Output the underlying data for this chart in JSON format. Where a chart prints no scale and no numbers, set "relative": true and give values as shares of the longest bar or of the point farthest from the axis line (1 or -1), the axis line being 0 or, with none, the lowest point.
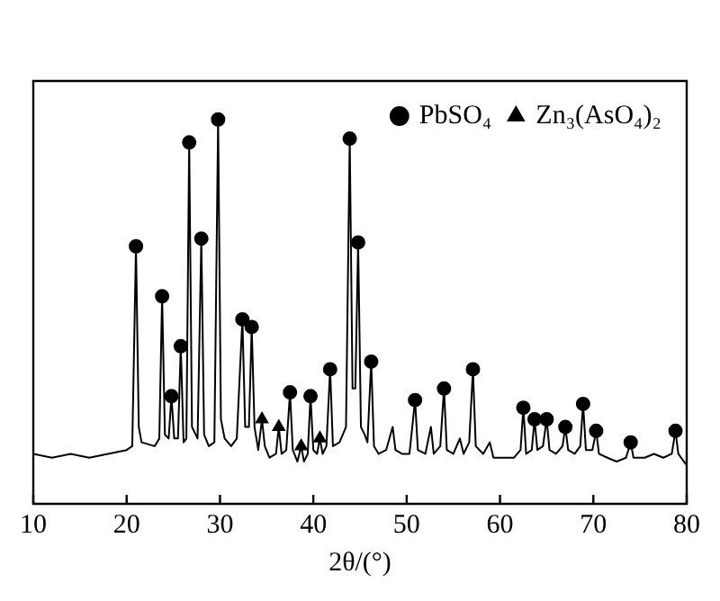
{
  "chart_data": {
    "type": "line",
    "relative": true,
    "xlabel": "2θ/(°)",
    "xlim": [
      10,
      80
    ],
    "xticks": [
      10,
      20,
      30,
      40,
      50,
      60,
      70,
      80
    ],
    "legend": "top right",
    "grid": false,
    "series": [
      {
        "color": "#000000",
        "marker": "none",
        "line_style": "solid",
        "x": [
          10,
          12,
          14,
          16,
          18,
          20,
          20.6,
          21.0,
          21.3,
          21.6,
          23.0,
          23.5,
          23.8,
          24.1,
          24.5,
          24.8,
          25.1,
          25.5,
          25.8,
          26.1,
          26.4,
          26.7,
          27.0,
          27.4,
          27.6,
          28.0,
          28.3,
          28.8,
          29.4,
          29.8,
          30.1,
          30.5,
          31.2,
          31.8,
          32.4,
          32.7,
          33.1,
          33.4,
          33.7,
          34.1,
          34.5,
          34.8,
          35.3,
          36.0,
          36.3,
          36.6,
          37.1,
          37.5,
          37.8,
          38.3,
          38.7,
          39.0,
          39.4,
          39.7,
          40.0,
          40.4,
          40.7,
          41.0,
          41.4,
          41.8,
          42.1,
          42.8,
          43.5,
          43.9,
          44.2,
          44.5,
          44.8,
          45.1,
          45.5,
          45.8,
          46.2,
          46.5,
          47.0,
          47.8,
          48.5,
          48.8,
          49.5,
          50.3,
          50.9,
          51.2,
          52.0,
          52.6,
          52.9,
          53.6,
          54.0,
          54.3,
          55.0,
          55.7,
          56.1,
          56.7,
          57.1,
          57.4,
          58.2,
          58.9,
          59.3,
          60.5,
          61.5,
          62.2,
          62.5,
          62.8,
          63.4,
          63.7,
          64.0,
          64.6,
          65.0,
          65.3,
          66.0,
          66.7,
          67.0,
          67.3,
          68.0,
          68.6,
          68.9,
          69.2,
          69.9,
          70.3,
          70.6,
          71.5,
          72.5,
          73.5,
          74.0,
          74.3,
          75.5,
          76.5,
          77.5,
          78.4,
          78.8,
          79.1,
          80
        ],
        "values": [
          0.13,
          0.12,
          0.13,
          0.12,
          0.13,
          0.14,
          0.15,
          0.67,
          0.2,
          0.16,
          0.15,
          0.17,
          0.54,
          0.18,
          0.17,
          0.28,
          0.17,
          0.17,
          0.41,
          0.16,
          0.17,
          0.94,
          0.2,
          0.18,
          0.17,
          0.69,
          0.18,
          0.15,
          0.16,
          1.0,
          0.22,
          0.17,
          0.15,
          0.17,
          0.48,
          0.2,
          0.2,
          0.46,
          0.2,
          0.14,
          0.22,
          0.15,
          0.12,
          0.13,
          0.2,
          0.13,
          0.14,
          0.29,
          0.14,
          0.11,
          0.15,
          0.11,
          0.13,
          0.28,
          0.14,
          0.13,
          0.17,
          0.13,
          0.15,
          0.35,
          0.15,
          0.16,
          0.2,
          0.95,
          0.3,
          0.3,
          0.68,
          0.2,
          0.18,
          0.16,
          0.37,
          0.15,
          0.13,
          0.14,
          0.2,
          0.14,
          0.13,
          0.13,
          0.27,
          0.14,
          0.13,
          0.2,
          0.13,
          0.15,
          0.3,
          0.14,
          0.13,
          0.17,
          0.13,
          0.16,
          0.35,
          0.15,
          0.13,
          0.16,
          0.12,
          0.12,
          0.12,
          0.14,
          0.25,
          0.13,
          0.14,
          0.22,
          0.14,
          0.15,
          0.22,
          0.14,
          0.13,
          0.15,
          0.2,
          0.14,
          0.13,
          0.15,
          0.26,
          0.14,
          0.14,
          0.19,
          0.13,
          0.12,
          0.11,
          0.12,
          0.16,
          0.12,
          0.12,
          0.13,
          0.12,
          0.13,
          0.19,
          0.13,
          0.1
        ]
      },
      {
        "type": "scatter",
        "name": "PbSO₄",
        "color": "#000000",
        "marker": "circle",
        "x": [
          21.0,
          23.8,
          24.8,
          25.8,
          26.7,
          28.0,
          29.8,
          32.4,
          33.4,
          37.5,
          39.7,
          41.8,
          43.9,
          44.8,
          46.2,
          50.9,
          54.0,
          57.1,
          62.5,
          63.7,
          65.0,
          67.0,
          68.9,
          70.3,
          74.0,
          78.8
        ],
        "values": [
          0.67,
          0.54,
          0.28,
          0.41,
          0.94,
          0.69,
          1.0,
          0.48,
          0.46,
          0.29,
          0.28,
          0.35,
          0.95,
          0.68,
          0.37,
          0.27,
          0.3,
          0.35,
          0.25,
          0.22,
          0.22,
          0.2,
          0.26,
          0.19,
          0.16,
          0.19
        ]
      },
      {
        "type": "scatter",
        "name": "Zn₃(AsO₄)₂",
        "color": "#000000",
        "marker": "triangle",
        "x": [
          34.5,
          36.3,
          38.7,
          40.7
        ],
        "values": [
          0.22,
          0.2,
          0.15,
          0.17
        ]
      }
    ]
  }
}
